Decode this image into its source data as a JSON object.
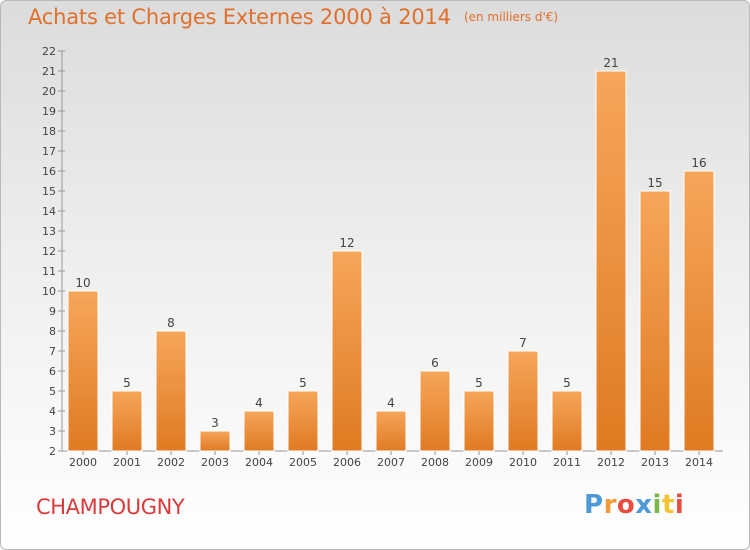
{
  "header": {
    "title": "Achats et Charges Externes 2000 à 2014",
    "unit": "(en milliers d'€)"
  },
  "footer": {
    "town": "CHAMPOUGNY",
    "brand": [
      "P",
      "r",
      "o",
      "x",
      "i",
      "t",
      "i"
    ]
  },
  "colors": {
    "title": "#e0702c",
    "town": "#dc3a3a",
    "bar_light": "#f6a65a",
    "bar_dark": "#e07a22",
    "brand": [
      "#4c9ad8",
      "#f29a38",
      "#e84d3f",
      "#4c9ad8",
      "#7cb845",
      "#f4c430",
      "#e84d3f"
    ]
  },
  "chart_data": {
    "type": "bar",
    "title": "Achats et Charges Externes 2000 à 2014",
    "ylabel": "",
    "xlabel": "",
    "categories": [
      "2000",
      "2001",
      "2002",
      "2003",
      "2004",
      "2005",
      "2006",
      "2007",
      "2008",
      "2009",
      "2010",
      "2011",
      "2012",
      "2013",
      "2014"
    ],
    "values": [
      10,
      5,
      8,
      3,
      4,
      5,
      12,
      4,
      6,
      5,
      7,
      5,
      21,
      15,
      16
    ],
    "ylim": [
      2,
      22
    ],
    "yticks": [
      2,
      3,
      4,
      5,
      6,
      7,
      8,
      9,
      10,
      11,
      12,
      13,
      14,
      15,
      16,
      17,
      18,
      19,
      20,
      21,
      22
    ],
    "grid": false,
    "legend": "none"
  }
}
